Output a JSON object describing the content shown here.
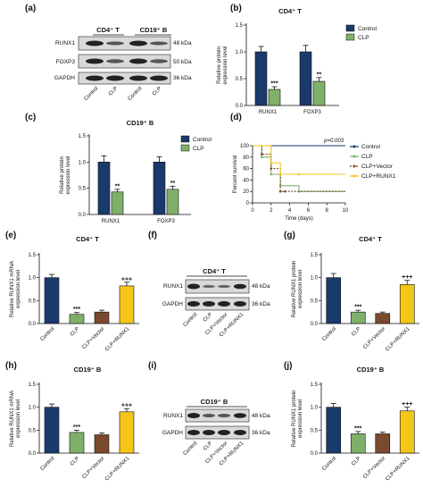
{
  "colors": {
    "control": "#1a3a6b",
    "clp": "#7fb069",
    "vector": "#7a4a2e",
    "runx1": "#f5c518",
    "axis": "#111111"
  },
  "panels": {
    "a": {
      "label": "(a)",
      "col_headers": [
        "CD4⁺ T",
        "CD19⁺ B"
      ],
      "rows": [
        {
          "protein": "RUNX1",
          "kda": "48 kDa"
        },
        {
          "protein": "FOXP3",
          "kda": "50 kDa"
        },
        {
          "protein": "GAPDH",
          "kda": "36 kDa"
        }
      ],
      "lanes": [
        "Control",
        "CLP",
        "Control",
        "CLP"
      ]
    },
    "b": {
      "label": "(b)"
    },
    "c": {
      "label": "(c)"
    },
    "d": {
      "label": "(d)"
    },
    "e": {
      "label": "(e)"
    },
    "f": {
      "label": "(f)",
      "header": "CD4⁺ T",
      "rows": [
        {
          "protein": "RUNX1",
          "kda": "48 kDa"
        },
        {
          "protein": "GAPDH",
          "kda": "36 kDa"
        }
      ],
      "lanes": [
        "Control",
        "CLP",
        "CLP+Vector",
        "CLP+RUNX1"
      ]
    },
    "g": {
      "label": "(g)"
    },
    "h": {
      "label": "(h)"
    },
    "i": {
      "label": "(i)",
      "header": "CD19⁺ B",
      "rows": [
        {
          "protein": "RUNX1",
          "kda": "48 kDa"
        },
        {
          "protein": "GAPDH",
          "kda": "36 kDa"
        }
      ],
      "lanes": [
        "Control",
        "CLP",
        "CLP+Vector",
        "CLP+RUNX1"
      ]
    },
    "j": {
      "label": "(j)"
    }
  },
  "chart_data": [
    {
      "id": "b",
      "type": "bar",
      "title": "CD4⁺ T",
      "ylabel": "Relative protein expression level",
      "categories": [
        "RUNX1",
        "FOXP3"
      ],
      "series": [
        {
          "name": "Control",
          "values": [
            1.0,
            1.0
          ],
          "errors": [
            0.1,
            0.12
          ]
        },
        {
          "name": "CLP",
          "values": [
            0.3,
            0.45
          ],
          "errors": [
            0.05,
            0.07
          ],
          "sig": [
            "***",
            "**"
          ]
        }
      ],
      "ylim": [
        0,
        1.5
      ],
      "yticks": [
        "0.0",
        "0.5",
        "1.0",
        "1.5"
      ],
      "legend": "top-right"
    },
    {
      "id": "c",
      "type": "bar",
      "title": "CD19⁺ B",
      "ylabel": "Relative protein expression level",
      "categories": [
        "RUNX1",
        "FOXP3"
      ],
      "series": [
        {
          "name": "Control",
          "values": [
            1.0,
            1.0
          ],
          "errors": [
            0.12,
            0.1
          ]
        },
        {
          "name": "CLP",
          "values": [
            0.43,
            0.48
          ],
          "errors": [
            0.05,
            0.06
          ],
          "sig": [
            "**",
            "**"
          ]
        }
      ],
      "ylim": [
        0,
        1.5
      ],
      "yticks": [
        "0.0",
        "0.5",
        "1.0",
        "1.5"
      ],
      "legend": "top-right"
    },
    {
      "id": "d",
      "type": "line",
      "xlabel": "Time (days)",
      "ylabel": "Percent survival",
      "annotation": "p=0.003",
      "xlim": [
        0,
        10
      ],
      "ylim": [
        0,
        100
      ],
      "xticks": [
        "0",
        "2",
        "4",
        "6",
        "8",
        "10"
      ],
      "yticks": [
        "0",
        "20",
        "40",
        "60",
        "80",
        "100"
      ],
      "series": [
        {
          "name": "Control",
          "x": [
            0,
            10
          ],
          "y": [
            100,
            100
          ]
        },
        {
          "name": "CLP",
          "x": [
            0,
            1,
            1,
            2,
            2,
            3,
            3,
            5,
            5,
            10
          ],
          "y": [
            100,
            100,
            80,
            80,
            50,
            50,
            30,
            30,
            20,
            20
          ]
        },
        {
          "name": "CLP+Vector",
          "x": [
            0,
            1,
            1,
            2,
            2,
            3,
            3,
            3.5,
            3.5,
            10
          ],
          "y": [
            100,
            100,
            85,
            85,
            60,
            60,
            20,
            20,
            20,
            20
          ]
        },
        {
          "name": "CLP+RUNX1",
          "x": [
            0,
            2,
            2,
            3,
            3,
            5,
            5,
            10
          ],
          "y": [
            100,
            100,
            70,
            70,
            50,
            50,
            50,
            50
          ]
        }
      ],
      "legend": "right"
    },
    {
      "id": "e",
      "type": "bar",
      "title": "CD4⁺ T",
      "ylabel": "Relative RUNX1 mRNA expression level",
      "categories": [
        "Control",
        "CLP",
        "CLP+Vector",
        "CLP+RUNX1"
      ],
      "values": [
        1.0,
        0.2,
        0.25,
        0.82
      ],
      "errors": [
        0.07,
        0.04,
        0.04,
        0.08
      ],
      "sig": [
        "",
        "***",
        "",
        "+++"
      ],
      "ylim": [
        0,
        1.5
      ],
      "yticks": [
        "0.0",
        "0.5",
        "1.0",
        "1.5"
      ]
    },
    {
      "id": "g",
      "type": "bar",
      "title": "CD4⁺ T",
      "ylabel": "Relative RUNX1 protein expression level",
      "categories": [
        "Control",
        "CLP",
        "CLP+Vector",
        "CLP+RUNX1"
      ],
      "values": [
        1.0,
        0.25,
        0.22,
        0.85
      ],
      "errors": [
        0.09,
        0.04,
        0.03,
        0.09
      ],
      "sig": [
        "",
        "***",
        "",
        "+++"
      ],
      "ylim": [
        0,
        1.5
      ],
      "yticks": [
        "0.0",
        "0.5",
        "1.0",
        "1.5"
      ]
    },
    {
      "id": "h",
      "type": "bar",
      "title": "CD19⁺ B",
      "ylabel": "Relative RUNX1 mRNA expression level",
      "categories": [
        "Control",
        "CLP",
        "CLP+Vector",
        "CLP+RUNX1"
      ],
      "values": [
        1.0,
        0.45,
        0.4,
        0.9
      ],
      "errors": [
        0.07,
        0.05,
        0.04,
        0.07
      ],
      "sig": [
        "",
        "***",
        "",
        "+++"
      ],
      "ylim": [
        0,
        1.5
      ],
      "yticks": [
        "0.0",
        "0.5",
        "1.0",
        "1.5"
      ]
    },
    {
      "id": "j",
      "type": "bar",
      "title": "CD19⁺ B",
      "ylabel": "Relative RUNX1 protein expression level",
      "categories": [
        "Control",
        "CLP",
        "CLP+Vector",
        "CLP+RUNX1"
      ],
      "values": [
        1.0,
        0.42,
        0.42,
        0.92
      ],
      "errors": [
        0.08,
        0.05,
        0.04,
        0.08
      ],
      "sig": [
        "",
        "***",
        "",
        "+++"
      ],
      "ylim": [
        0,
        1.5
      ],
      "yticks": [
        "0.0",
        "0.5",
        "1.0",
        "1.5"
      ]
    }
  ]
}
